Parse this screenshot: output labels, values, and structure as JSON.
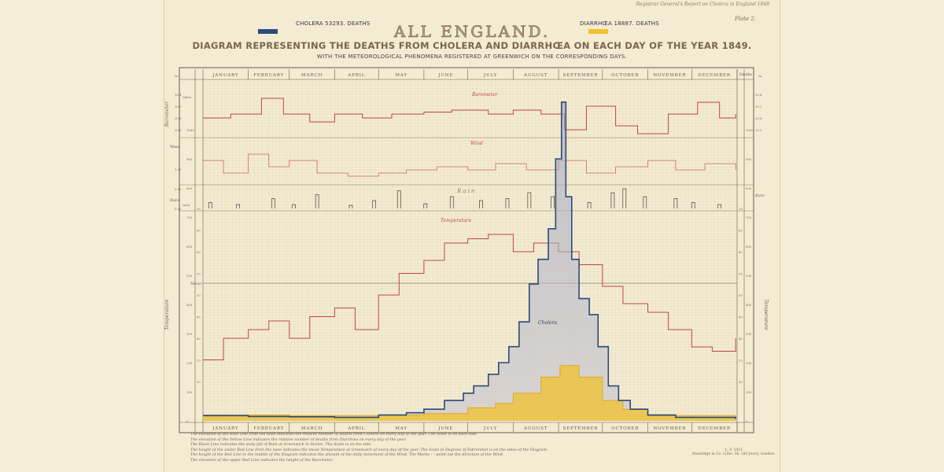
{
  "header": {
    "report_note": "Registrar General's Report on Cholera in England 1848",
    "plate": "Plate 2.",
    "title": "ALL ENGLAND.",
    "subtitle": "DIAGRAM REPRESENTING THE DEATHS FROM CHOLERA AND DIARRHŒA ON EACH DAY OF THE YEAR 1849.",
    "subsubtitle": "WITH THE METEOROLOGICAL PHENOMENA REGISTERED AT GREENWICH ON THE CORRESPONDING DAYS."
  },
  "colors": {
    "cholera": "#2c4a78",
    "diarrhoea": "#f0c22e",
    "meteorological": "#c0444a",
    "rain": "#4a4040",
    "grid": "#cdb89c"
  },
  "chart_data": {
    "type": "area",
    "x_axis": {
      "type": "date",
      "year": 1849,
      "range": [
        "01-01",
        "12-31"
      ],
      "tick_labels": [
        "JANUARY",
        "FEBRUARY",
        "MARCH",
        "APRIL",
        "MAY",
        "JUNE",
        "JULY",
        "AUGUST",
        "SEPTEMBER",
        "OCTOBER",
        "NOVEMBER",
        "DECEMBER"
      ]
    },
    "legend": [
      {
        "label": "CHOLERA 53293. DEATHS",
        "color": "#2c4a78"
      },
      {
        "label": "DIARRHŒA 18887. DEATHS",
        "color": "#f0c22e"
      }
    ],
    "grid": true,
    "panels": {
      "barometer": {
        "label": "Barometer",
        "unit": "In.",
        "ticks": [
          "30.4",
          "30.1",
          "29.8",
          "29.5"
        ],
        "values": [
          [
            "01-01",
            29.8
          ],
          [
            "01-20",
            29.9
          ],
          [
            "02-10",
            30.3
          ],
          [
            "02-25",
            29.9
          ],
          [
            "03-15",
            29.7
          ],
          [
            "04-01",
            29.9
          ],
          [
            "04-20",
            29.8
          ],
          [
            "05-10",
            29.9
          ],
          [
            "06-01",
            29.95
          ],
          [
            "06-20",
            30.0
          ],
          [
            "07-15",
            29.9
          ],
          [
            "08-01",
            30.0
          ],
          [
            "08-20",
            29.9
          ],
          [
            "09-05",
            29.5
          ],
          [
            "09-20",
            30.1
          ],
          [
            "10-10",
            29.6
          ],
          [
            "10-25",
            29.4
          ],
          [
            "11-15",
            29.9
          ],
          [
            "12-05",
            30.2
          ],
          [
            "12-20",
            29.8
          ],
          [
            "12-31",
            29.9
          ]
        ]
      },
      "wind": {
        "label": "Wind",
        "unit": "Miles",
        "ticks": [
          "600",
          "400",
          "300",
          "200",
          "100",
          "0"
        ],
        "values": [
          [
            "01-01",
            3
          ],
          [
            "01-15",
            1
          ],
          [
            "02-01",
            4
          ],
          [
            "02-15",
            2
          ],
          [
            "03-01",
            3
          ],
          [
            "03-20",
            1
          ],
          [
            "04-10",
            0.5
          ],
          [
            "05-01",
            1
          ],
          [
            "05-20",
            1.5
          ],
          [
            "06-10",
            2
          ],
          [
            "07-01",
            1.5
          ],
          [
            "07-20",
            2.5
          ],
          [
            "08-10",
            1.5
          ],
          [
            "09-01",
            3
          ],
          [
            "09-20",
            1
          ],
          [
            "10-10",
            2
          ],
          [
            "11-01",
            3
          ],
          [
            "11-20",
            1.5
          ],
          [
            "12-10",
            2.5
          ],
          [
            "12-31",
            1.5
          ]
        ]
      },
      "rain": {
        "label": "Rain",
        "unit": "Inch",
        "ticks": [
          "1.00",
          "0.50",
          "0.00"
        ],
        "values": [
          [
            "01-06",
            0.15
          ],
          [
            "01-25",
            0.1
          ],
          [
            "02-18",
            0.25
          ],
          [
            "03-04",
            0.1
          ],
          [
            "03-20",
            0.35
          ],
          [
            "04-12",
            0.08
          ],
          [
            "04-28",
            0.2
          ],
          [
            "05-15",
            0.45
          ],
          [
            "06-02",
            0.12
          ],
          [
            "06-20",
            0.3
          ],
          [
            "07-10",
            0.2
          ],
          [
            "07-28",
            0.25
          ],
          [
            "08-12",
            0.4
          ],
          [
            "08-28",
            0.3
          ],
          [
            "09-22",
            0.15
          ],
          [
            "10-08",
            0.4
          ],
          [
            "10-16",
            0.5
          ],
          [
            "10-30",
            0.3
          ],
          [
            "11-20",
            0.25
          ],
          [
            "12-02",
            0.15
          ],
          [
            "12-20",
            0.1
          ]
        ]
      },
      "temperature": {
        "label": "Temperature",
        "unit": "°F",
        "mean_label": "Mean",
        "ticks": [
          70,
          65,
          60,
          55,
          50,
          45,
          40,
          35,
          30
        ],
        "values": [
          [
            "01-01",
            35
          ],
          [
            "01-15",
            40
          ],
          [
            "02-01",
            42
          ],
          [
            "02-15",
            44
          ],
          [
            "03-01",
            40
          ],
          [
            "03-15",
            45
          ],
          [
            "04-01",
            47
          ],
          [
            "04-15",
            42
          ],
          [
            "05-01",
            50
          ],
          [
            "05-15",
            55
          ],
          [
            "06-01",
            58
          ],
          [
            "06-15",
            62
          ],
          [
            "07-01",
            63
          ],
          [
            "07-15",
            64
          ],
          [
            "08-01",
            60
          ],
          [
            "08-15",
            62
          ],
          [
            "09-01",
            60
          ],
          [
            "09-15",
            57
          ],
          [
            "10-01",
            52
          ],
          [
            "10-15",
            48
          ],
          [
            "11-01",
            46
          ],
          [
            "11-15",
            42
          ],
          [
            "12-01",
            38
          ],
          [
            "12-15",
            37
          ],
          [
            "12-31",
            40
          ]
        ]
      }
    },
    "deaths_axis": {
      "label": "Deaths",
      "ticks": [
        1000,
        900,
        800,
        700,
        600,
        500,
        400,
        300,
        200,
        100,
        0
      ],
      "range": [
        0,
        1100
      ]
    },
    "series": [
      {
        "name": "Cholera",
        "values": [
          [
            "01-01",
            18
          ],
          [
            "02-01",
            15
          ],
          [
            "03-01",
            14
          ],
          [
            "04-01",
            12
          ],
          [
            "05-01",
            20
          ],
          [
            "05-20",
            28
          ],
          [
            "06-01",
            40
          ],
          [
            "06-15",
            70
          ],
          [
            "06-28",
            95
          ],
          [
            "07-05",
            120
          ],
          [
            "07-15",
            160
          ],
          [
            "07-22",
            200
          ],
          [
            "07-29",
            255
          ],
          [
            "08-05",
            340
          ],
          [
            "08-12",
            470
          ],
          [
            "08-18",
            555
          ],
          [
            "08-25",
            660
          ],
          [
            "08-30",
            900
          ],
          [
            "09-03",
            1095
          ],
          [
            "09-06",
            770
          ],
          [
            "09-10",
            555
          ],
          [
            "09-15",
            420
          ],
          [
            "09-22",
            365
          ],
          [
            "09-28",
            255
          ],
          [
            "10-05",
            120
          ],
          [
            "10-12",
            70
          ],
          [
            "10-20",
            40
          ],
          [
            "11-01",
            20
          ],
          [
            "11-20",
            12
          ],
          [
            "12-31",
            6
          ]
        ]
      },
      {
        "name": "Diarrhœa",
        "values": [
          [
            "01-01",
            20
          ],
          [
            "03-01",
            18
          ],
          [
            "05-01",
            20
          ],
          [
            "06-01",
            25
          ],
          [
            "07-01",
            45
          ],
          [
            "07-20",
            60
          ],
          [
            "08-01",
            95
          ],
          [
            "08-20",
            150
          ],
          [
            "09-02",
            190
          ],
          [
            "09-15",
            150
          ],
          [
            "10-01",
            70
          ],
          [
            "10-15",
            40
          ],
          [
            "11-01",
            18
          ],
          [
            "12-31",
            15
          ]
        ]
      }
    ]
  },
  "notes": [
    "The elevation of the Blue Line from the base indicates the relative number of deaths from Cholera on every day of the year. The Scale is on each side.",
    "The elevation of the Yellow Line indicates the relative number of deaths from Diarrhœa on every day of the year.",
    "The Black Line indicates the daily fall of Rain at Greenwich in Inches. The Scale is on the side.",
    "The height of the under Red Line from the base indicates the mean Temperature at Greenwich of every day of the year. The Scale in Degrees of Fahrenheit is on the sides of the Diagram.",
    "The height of the Red Line in the middle of the Diagram indicates the amount of the daily movement of the Wind. The Marks ‹ › point out the direction of the Wind.",
    "The elevation of the upper Red Line indicates the height of the Barometer."
  ],
  "imprint": [
    "L. F. 1851",
    "Standidge & Co. Litho. 36, Old Jewry, London."
  ]
}
